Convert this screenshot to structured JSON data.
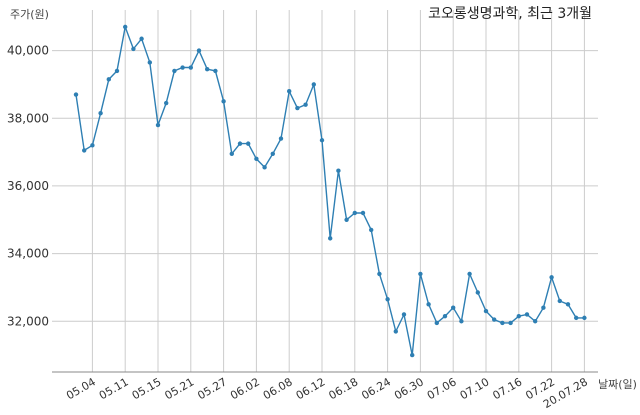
{
  "chart_data": {
    "type": "line",
    "title": "코오롱생명과학, 최근 3개월",
    "ylabel": "주가(원)",
    "xlabel": "날짜(일)",
    "ylim": [
      30500,
      41200
    ],
    "yticks": [
      32000,
      34000,
      36000,
      38000,
      40000
    ],
    "ytick_labels": [
      "32,000",
      "34,000",
      "36,000",
      "38,000",
      "40,000"
    ],
    "grid": true,
    "color": "#2e7fb3",
    "x_ticks": [
      {
        "index": 2,
        "label": "05.04"
      },
      {
        "index": 6,
        "label": "05.11"
      },
      {
        "index": 10,
        "label": "05.15"
      },
      {
        "index": 14,
        "label": "05.21"
      },
      {
        "index": 18,
        "label": "05.27"
      },
      {
        "index": 22,
        "label": "06.02"
      },
      {
        "index": 26,
        "label": "06.08"
      },
      {
        "index": 30,
        "label": "06.12"
      },
      {
        "index": 34,
        "label": "06.18"
      },
      {
        "index": 38,
        "label": "06.24"
      },
      {
        "index": 42,
        "label": "06.30"
      },
      {
        "index": 46,
        "label": "07.06"
      },
      {
        "index": 50,
        "label": "07.10"
      },
      {
        "index": 54,
        "label": "07.16"
      },
      {
        "index": 58,
        "label": "07.22"
      },
      {
        "index": 62,
        "label": "20.07.28"
      }
    ],
    "values": [
      38700,
      37050,
      37200,
      38150,
      39150,
      39400,
      40700,
      40050,
      40350,
      39650,
      37800,
      38450,
      39400,
      39500,
      39500,
      40000,
      39450,
      39400,
      38500,
      36950,
      37250,
      37250,
      36800,
      36550,
      36950,
      37400,
      38800,
      38300,
      38400,
      39000,
      37350,
      34450,
      36450,
      35000,
      35200,
      35200,
      34700,
      33400,
      32650,
      31700,
      32200,
      31000,
      33400,
      32500,
      31950,
      32150,
      32400,
      32000,
      33400,
      32850,
      32300,
      32050,
      31950,
      31950,
      32150,
      32200,
      32000,
      32400,
      33300,
      32600,
      32500,
      32100,
      32100
    ]
  }
}
